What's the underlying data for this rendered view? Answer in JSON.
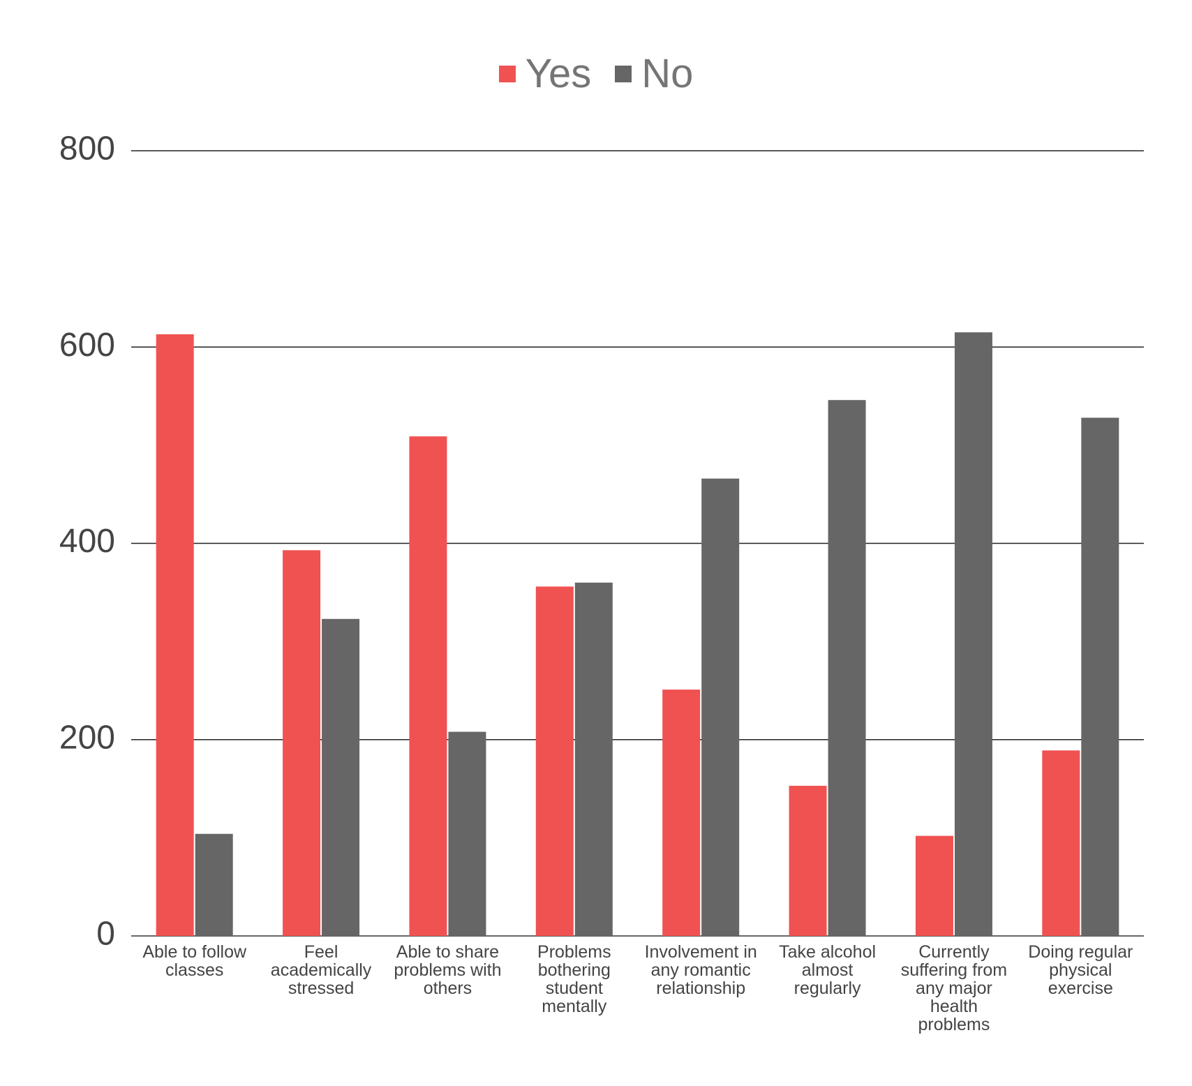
{
  "chart_data": {
    "type": "bar",
    "categories": [
      "Able to follow classes",
      "Feel academically stressed",
      "Able to share problems with others",
      "Problems bothering student mentally",
      "Involvement in any romantic relationship",
      "Take alcohol almost regularly",
      "Currently suffering from any major health problems",
      "Doing regular physical exercise"
    ],
    "series": [
      {
        "name": "Yes",
        "color": "#f05252",
        "values": [
          613,
          393,
          509,
          356,
          251,
          153,
          102,
          189
        ]
      },
      {
        "name": "No",
        "color": "#666666",
        "values": [
          104,
          323,
          208,
          360,
          466,
          546,
          615,
          528
        ]
      }
    ],
    "ylim": [
      0,
      800
    ],
    "yticks": [
      0,
      200,
      400,
      600,
      800
    ],
    "grid": true,
    "legend": "top"
  }
}
